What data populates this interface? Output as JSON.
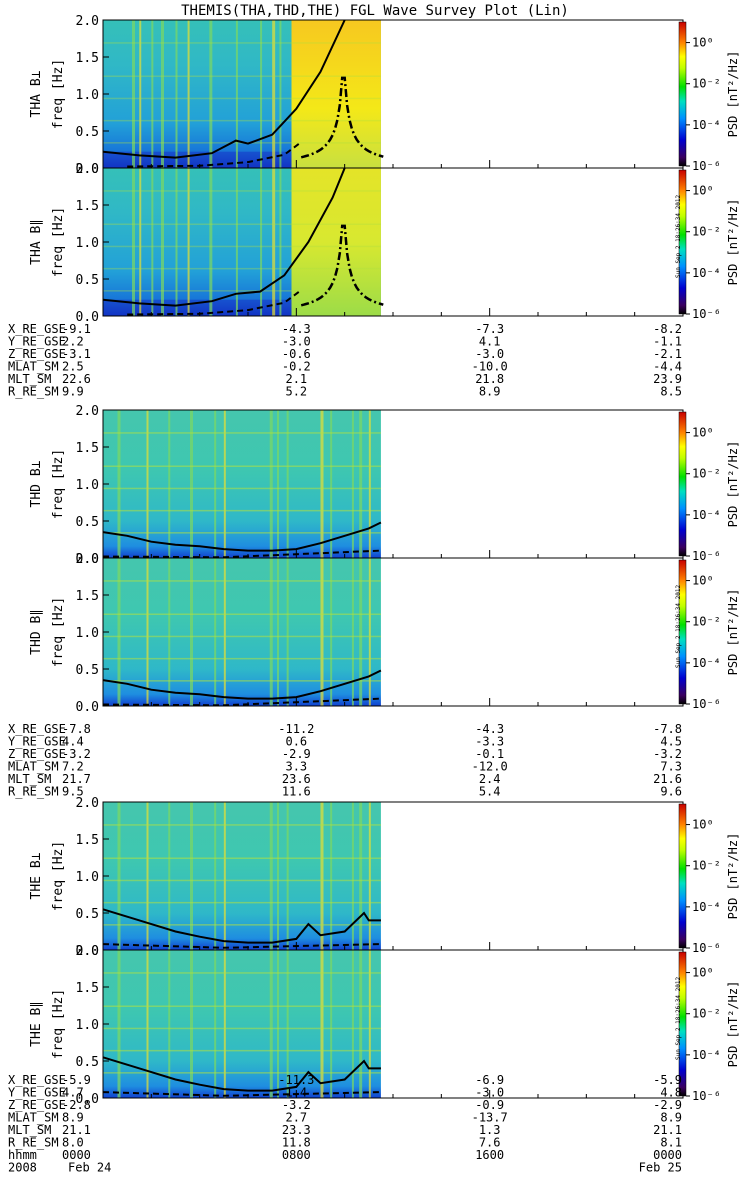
{
  "title": "THEMIS(THA,THD,THE) FGL Wave Survey Plot (Lin)",
  "timestamp": "Sun Sep  2 18:26:34 2012",
  "colorbar": {
    "label": "PSD [nT²/Hz]",
    "ticks": [
      "10⁰",
      "10⁻²",
      "10⁻⁴",
      "10⁻⁶"
    ]
  },
  "freq_ticks": [
    "0.0",
    "0.5",
    "1.0",
    "1.5",
    "2.0"
  ],
  "freq_unit": "freq [Hz]",
  "time_axis": {
    "labels": [
      "hhmm",
      "2008"
    ],
    "hhmm": [
      "0000",
      "0800",
      "1600",
      "0000"
    ],
    "dates": [
      "Feb 24",
      "Feb 25"
    ]
  },
  "chart_data": [
    {
      "type": "heatmap",
      "probe": "THA",
      "component": "B⊥",
      "ylabel": "THA B⊥",
      "ylim": [
        0,
        2
      ],
      "xlim": [
        0,
        24
      ],
      "zscale": "log",
      "zrange": [
        1e-06,
        10.0
      ],
      "data_extent_hours": [
        0,
        11.5
      ],
      "style": "enhanced-band",
      "line_solid": [
        [
          0,
          0.22
        ],
        [
          1.5,
          0.17
        ],
        [
          3,
          0.14
        ],
        [
          4.5,
          0.2
        ],
        [
          5.5,
          0.37
        ],
        [
          6,
          0.33
        ],
        [
          7,
          0.45
        ],
        [
          8,
          0.8
        ],
        [
          9,
          1.3
        ],
        [
          10,
          2.0
        ]
      ],
      "line_dashed": [
        [
          1,
          0.02
        ],
        [
          4,
          0.03
        ],
        [
          6,
          0.08
        ],
        [
          7.5,
          0.18
        ],
        [
          8.2,
          0.35
        ]
      ]
    },
    {
      "type": "heatmap",
      "probe": "THA",
      "component": "B∥",
      "ylabel": "THA B∥",
      "ylim": [
        0,
        2
      ],
      "xlim": [
        0,
        24
      ],
      "zscale": "log",
      "zrange": [
        1e-06,
        10.0
      ],
      "data_extent_hours": [
        0,
        11.5
      ],
      "style": "enhanced-band",
      "line_solid": [
        [
          0,
          0.22
        ],
        [
          1.5,
          0.17
        ],
        [
          3,
          0.14
        ],
        [
          4.5,
          0.2
        ],
        [
          5.5,
          0.3
        ],
        [
          6.5,
          0.33
        ],
        [
          7.5,
          0.55
        ],
        [
          8.5,
          1.0
        ],
        [
          9.5,
          1.6
        ],
        [
          10,
          2.0
        ]
      ],
      "line_dashed": [
        [
          1,
          0.02
        ],
        [
          4,
          0.03
        ],
        [
          6,
          0.08
        ],
        [
          7.5,
          0.18
        ],
        [
          8.2,
          0.35
        ]
      ]
    },
    {
      "type": "heatmap",
      "probe": "THD",
      "component": "B⊥",
      "ylabel": "THD B⊥",
      "ylim": [
        0,
        2
      ],
      "xlim": [
        0,
        24
      ],
      "zscale": "log",
      "zrange": [
        1e-06,
        10.0
      ],
      "data_extent_hours": [
        0,
        11.5
      ],
      "style": "normal",
      "line_solid": [
        [
          0,
          0.35
        ],
        [
          1,
          0.3
        ],
        [
          2,
          0.22
        ],
        [
          3,
          0.18
        ],
        [
          4,
          0.16
        ],
        [
          5,
          0.12
        ],
        [
          6,
          0.1
        ],
        [
          7,
          0.1
        ],
        [
          8,
          0.12
        ],
        [
          9,
          0.2
        ],
        [
          10,
          0.3
        ],
        [
          11,
          0.4
        ],
        [
          11.5,
          0.48
        ]
      ],
      "line_dashed": [
        [
          0,
          0.02
        ],
        [
          5,
          0.01
        ],
        [
          11.5,
          0.1
        ]
      ]
    },
    {
      "type": "heatmap",
      "probe": "THD",
      "component": "B∥",
      "ylabel": "THD B∥",
      "ylim": [
        0,
        2
      ],
      "xlim": [
        0,
        24
      ],
      "zscale": "log",
      "zrange": [
        1e-06,
        10.0
      ],
      "data_extent_hours": [
        0,
        11.5
      ],
      "style": "normal",
      "line_solid": [
        [
          0,
          0.35
        ],
        [
          1,
          0.3
        ],
        [
          2,
          0.22
        ],
        [
          3,
          0.18
        ],
        [
          4,
          0.16
        ],
        [
          5,
          0.12
        ],
        [
          6,
          0.1
        ],
        [
          7,
          0.1
        ],
        [
          8,
          0.12
        ],
        [
          9,
          0.2
        ],
        [
          10,
          0.3
        ],
        [
          11,
          0.4
        ],
        [
          11.5,
          0.48
        ]
      ],
      "line_dashed": [
        [
          0,
          0.02
        ],
        [
          5,
          0.01
        ],
        [
          11.5,
          0.1
        ]
      ]
    },
    {
      "type": "heatmap",
      "probe": "THE",
      "component": "B⊥",
      "ylabel": "THE B⊥",
      "ylim": [
        0,
        2
      ],
      "xlim": [
        0,
        24
      ],
      "zscale": "log",
      "zrange": [
        1e-06,
        10.0
      ],
      "data_extent_hours": [
        0,
        11.5
      ],
      "style": "normal",
      "line_solid": [
        [
          0,
          0.55
        ],
        [
          1,
          0.45
        ],
        [
          2,
          0.35
        ],
        [
          3,
          0.25
        ],
        [
          4,
          0.18
        ],
        [
          5,
          0.12
        ],
        [
          6,
          0.1
        ],
        [
          7,
          0.1
        ],
        [
          8,
          0.15
        ],
        [
          8.5,
          0.35
        ],
        [
          9,
          0.2
        ],
        [
          10,
          0.25
        ],
        [
          10.8,
          0.5
        ],
        [
          11,
          0.4
        ],
        [
          11.5,
          0.4
        ]
      ],
      "line_dashed": [
        [
          0,
          0.08
        ],
        [
          5,
          0.03
        ],
        [
          11.5,
          0.08
        ]
      ]
    },
    {
      "type": "heatmap",
      "probe": "THE",
      "component": "B∥",
      "ylabel": "THE B∥",
      "ylim": [
        0,
        2
      ],
      "xlim": [
        0,
        24
      ],
      "zscale": "log",
      "zrange": [
        1e-06,
        10.0
      ],
      "data_extent_hours": [
        0,
        11.5
      ],
      "style": "normal",
      "line_solid": [
        [
          0,
          0.55
        ],
        [
          1,
          0.45
        ],
        [
          2,
          0.35
        ],
        [
          3,
          0.25
        ],
        [
          4,
          0.18
        ],
        [
          5,
          0.12
        ],
        [
          6,
          0.1
        ],
        [
          7,
          0.1
        ],
        [
          8,
          0.15
        ],
        [
          8.5,
          0.35
        ],
        [
          9,
          0.2
        ],
        [
          10,
          0.25
        ],
        [
          10.8,
          0.5
        ],
        [
          11,
          0.4
        ],
        [
          11.5,
          0.4
        ]
      ],
      "line_dashed": [
        [
          0,
          0.08
        ],
        [
          5,
          0.03
        ],
        [
          11.5,
          0.08
        ]
      ]
    }
  ],
  "ephemeris": [
    {
      "probe": "THA",
      "rows": [
        {
          "label": "X_RE_GSE",
          "values": [
            "-9.1",
            "-4.3",
            "-7.3",
            "-8.2"
          ]
        },
        {
          "label": "Y_RE_GSE",
          "values": [
            "2.2",
            "-3.0",
            "4.1",
            "-1.1"
          ]
        },
        {
          "label": "Z_RE_GSE",
          "values": [
            "-3.1",
            "-0.6",
            "-3.0",
            "-2.1"
          ]
        },
        {
          "label": "MLAT_SM",
          "values": [
            "2.5",
            "-0.2",
            "-10.0",
            "-4.4"
          ]
        },
        {
          "label": "MLT_SM",
          "values": [
            "22.6",
            "2.1",
            "21.8",
            "23.9"
          ]
        },
        {
          "label": "R_RE_SM",
          "values": [
            "9.9",
            "5.2",
            "8.9",
            "8.5"
          ]
        }
      ]
    },
    {
      "probe": "THD",
      "rows": [
        {
          "label": "X_RE_GSE",
          "values": [
            "-7.8",
            "-11.2",
            "-4.3",
            "-7.8"
          ]
        },
        {
          "label": "Y_RE_GSE",
          "values": [
            "4.4",
            "0.6",
            "-3.3",
            "4.5"
          ]
        },
        {
          "label": "Z_RE_GSE",
          "values": [
            "-3.2",
            "-2.9",
            "-0.1",
            "-3.2"
          ]
        },
        {
          "label": "MLAT_SM",
          "values": [
            "7.2",
            "3.3",
            "-12.0",
            "7.3"
          ]
        },
        {
          "label": "MLT_SM",
          "values": [
            "21.7",
            "23.6",
            "2.4",
            "21.6"
          ]
        },
        {
          "label": "R_RE_SM",
          "values": [
            "9.5",
            "11.6",
            "5.4",
            "9.6"
          ]
        }
      ]
    },
    {
      "probe": "THE",
      "rows": [
        {
          "label": "X_RE_GSE",
          "values": [
            "-5.9",
            "-11.3",
            "-6.9",
            "-5.9"
          ]
        },
        {
          "label": "Y_RE_GSE",
          "values": [
            "4.7",
            "1.4",
            "-3.0",
            "4.8"
          ]
        },
        {
          "label": "Z_RE_GSE",
          "values": [
            "-2.8",
            "-3.2",
            "-0.9",
            "-2.9"
          ]
        },
        {
          "label": "MLAT_SM",
          "values": [
            "8.9",
            "2.7",
            "-13.7",
            "8.9"
          ]
        },
        {
          "label": "MLT_SM",
          "values": [
            "21.1",
            "23.3",
            "1.3",
            "21.1"
          ]
        },
        {
          "label": "R_RE_SM",
          "values": [
            "8.0",
            "11.8",
            "7.6",
            "8.1"
          ]
        }
      ]
    }
  ]
}
